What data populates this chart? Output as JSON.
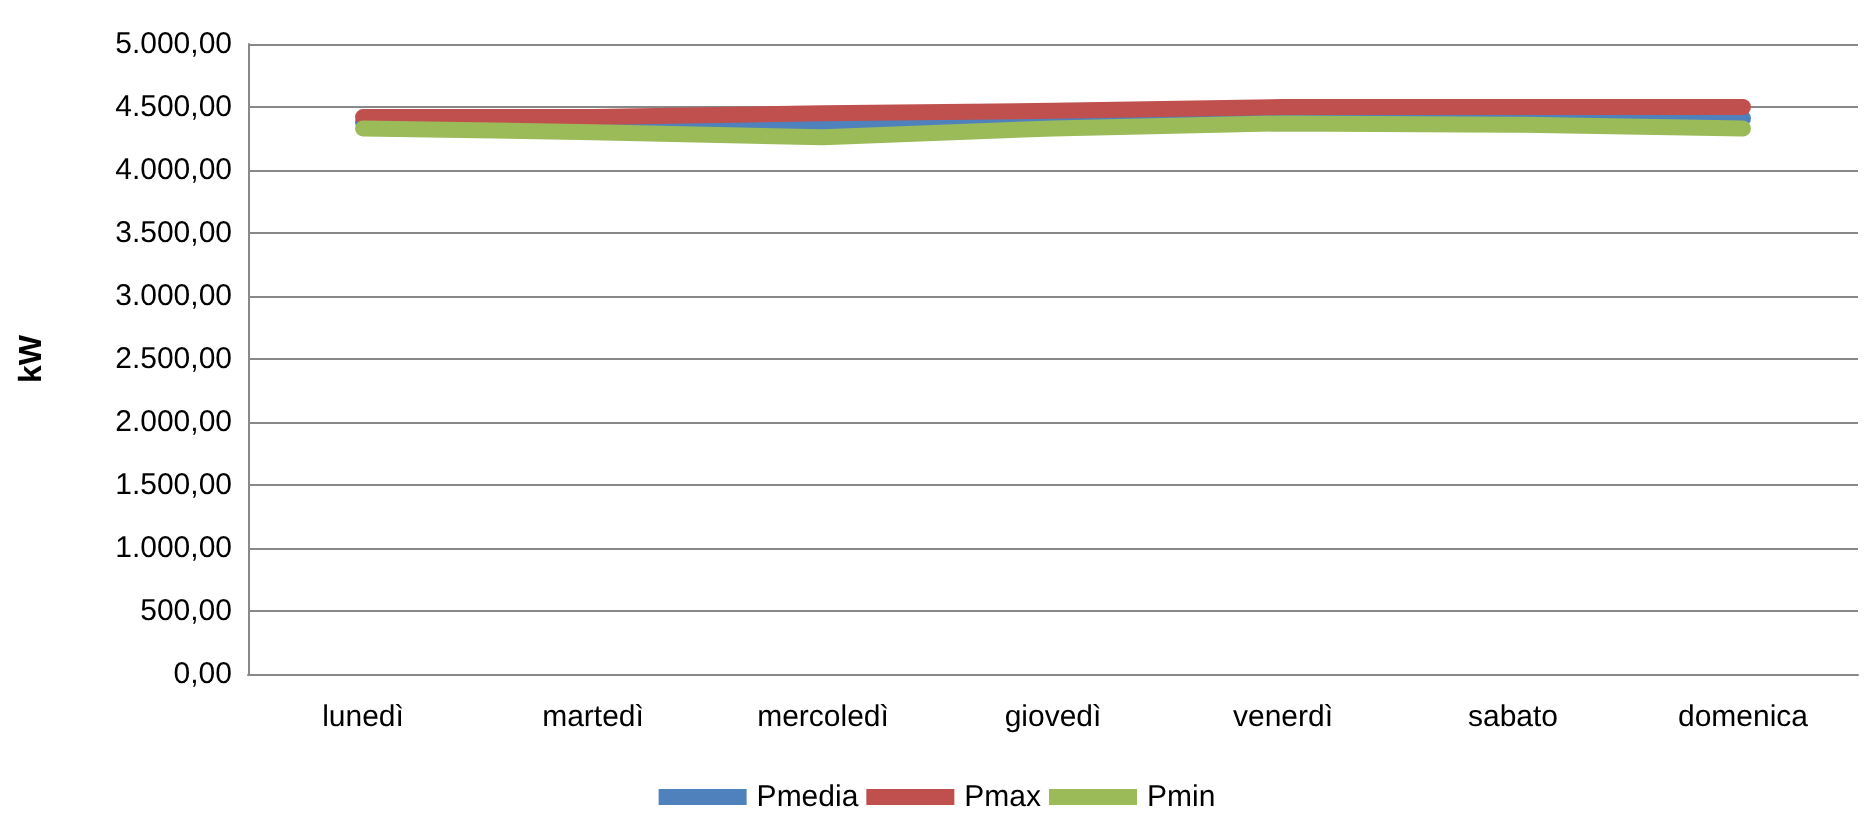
{
  "chart_data": {
    "type": "line",
    "ylabel": "kW",
    "categories": [
      "lunedì",
      "martedì",
      "mercoledì",
      "giovedì",
      "venerdì",
      "sabato",
      "domenica"
    ],
    "series": [
      {
        "name": "Pmedia",
        "color": "#4f81bd",
        "values": [
          4380,
          null,
          4330,
          4400,
          4430,
          4430,
          4410
        ]
      },
      {
        "name": "Pmax",
        "color": "#c0504d",
        "values": [
          4420,
          4420,
          4450,
          4470,
          4500,
          4500,
          4500
        ]
      },
      {
        "name": "Pmin",
        "color": "#9bbb59",
        "values": [
          4330,
          4300,
          4260,
          4330,
          4370,
          4360,
          4330
        ]
      }
    ],
    "ylim": [
      0,
      5000
    ],
    "yticks": [
      {
        "value": 0,
        "label": "0,00"
      },
      {
        "value": 500,
        "label": "500,00"
      },
      {
        "value": 1000,
        "label": "1.000,00"
      },
      {
        "value": 1500,
        "label": "1.500,00"
      },
      {
        "value": 2000,
        "label": "2.000,00"
      },
      {
        "value": 2500,
        "label": "2.500,00"
      },
      {
        "value": 3000,
        "label": "3.000,00"
      },
      {
        "value": 3500,
        "label": "3.500,00"
      },
      {
        "value": 4000,
        "label": "4.000,00"
      },
      {
        "value": 4500,
        "label": "4.500,00"
      },
      {
        "value": 5000,
        "label": "5.000,00"
      }
    ],
    "grid": "y",
    "legend": "bottom",
    "marker": "none",
    "line_style": "solid"
  }
}
